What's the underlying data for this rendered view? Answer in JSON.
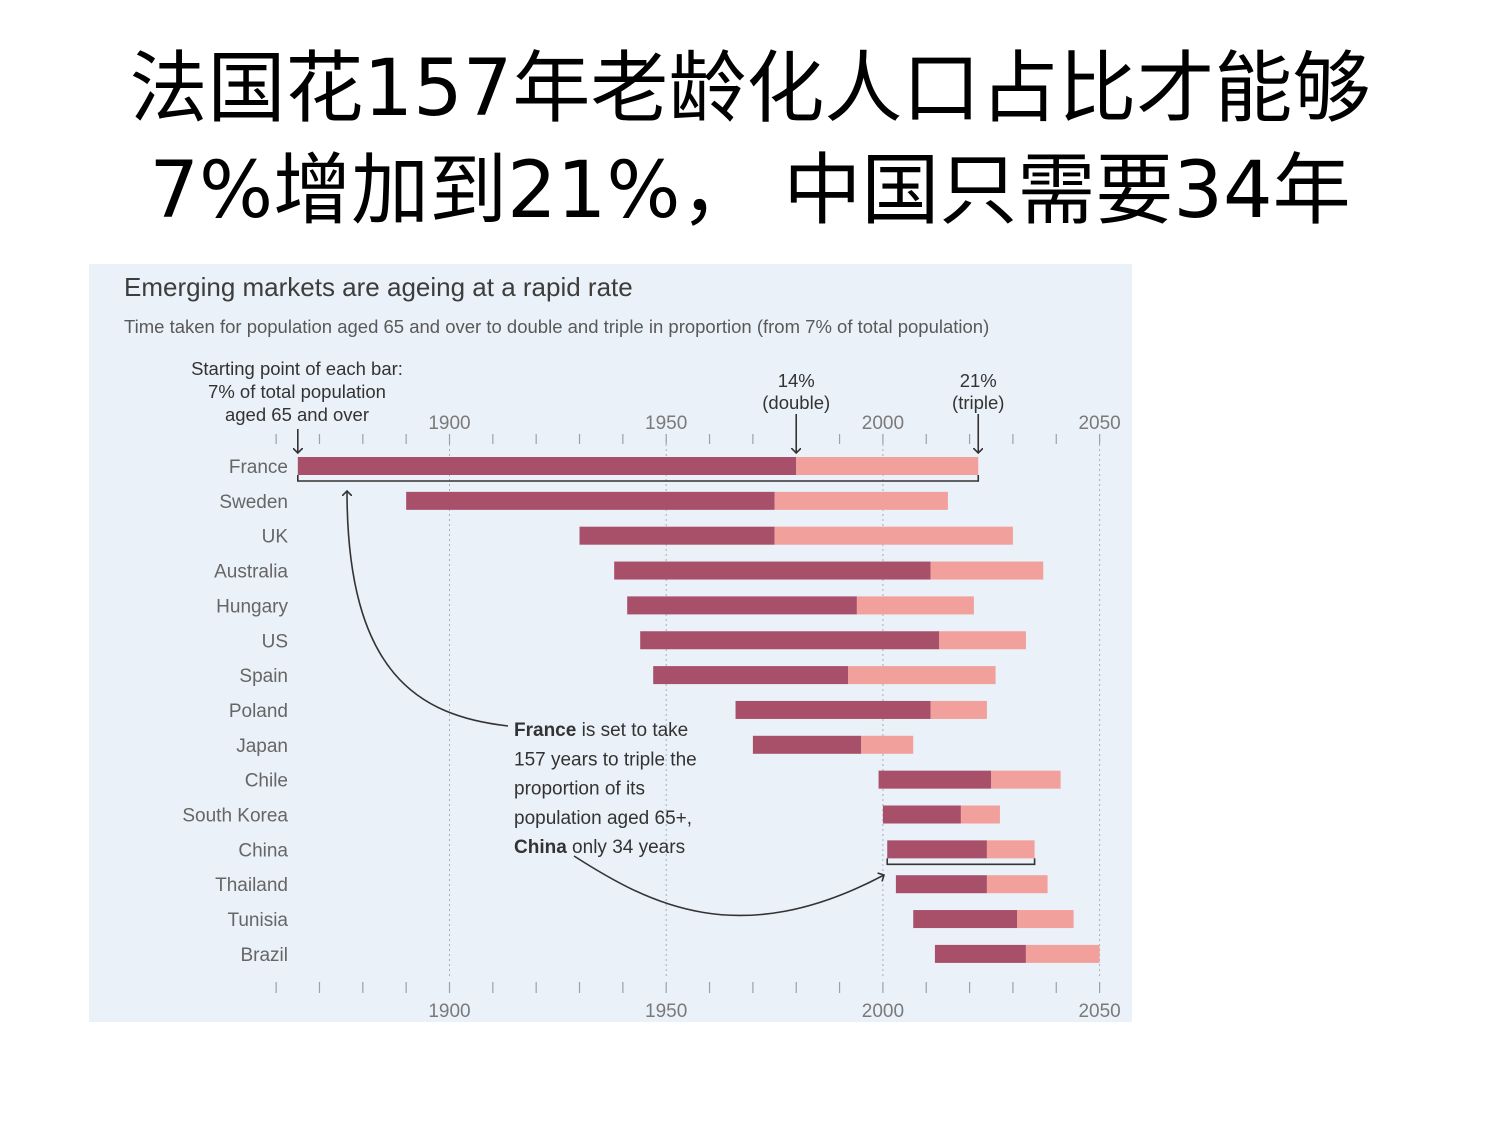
{
  "slide": {
    "title_line1": "法国花157年老龄化人口占比才能够",
    "title_line2": "7%增加到21%， 中国只需要34年"
  },
  "chart_data": {
    "type": "bar",
    "title": "Emerging markets are ageing at a rapid rate",
    "subtitle": "Time taken for population aged 65 and over to double and triple in proportion (from 7% of total population)",
    "x_ticks": [
      1900,
      1950,
      2000,
      2050
    ],
    "xlim": [
      1864,
      2050
    ],
    "grid": true,
    "colors": {
      "double": "#a8506a",
      "triple": "#f2a09c",
      "background": "#eaf1f8"
    },
    "categories": [
      "France",
      "Sweden",
      "UK",
      "Australia",
      "Hungary",
      "US",
      "Spain",
      "Poland",
      "Japan",
      "Chile",
      "South Korea",
      "China",
      "Thailand",
      "Tunisia",
      "Brazil"
    ],
    "start_7pct": [
      1865,
      1890,
      1930,
      1938,
      1941,
      1944,
      1947,
      1966,
      1970,
      1999,
      2000,
      2001,
      2003,
      2007,
      2012
    ],
    "double_14pct": [
      1980,
      1975,
      1975,
      2011,
      1994,
      2013,
      1992,
      2011,
      1995,
      2025,
      2018,
      2024,
      2024,
      2031,
      2033
    ],
    "triple_21pct": [
      2022,
      2015,
      2030,
      2037,
      2021,
      2033,
      2026,
      2024,
      2007,
      2041,
      2027,
      2035,
      2038,
      2044,
      2050
    ],
    "annotations": {
      "start_label": [
        "Starting point of each bar:",
        "7% of total population",
        "aged 65 and over"
      ],
      "double_label": [
        "14%",
        "(double)"
      ],
      "triple_label": [
        "21%",
        "(triple)"
      ],
      "note_lines": [
        {
          "bold": "France",
          "rest": " is set to take"
        },
        {
          "bold": "",
          "rest": "157 years to triple the"
        },
        {
          "bold": "",
          "rest": "proportion of its"
        },
        {
          "bold": "",
          "rest": "population aged 65+,"
        },
        {
          "bold": "China",
          "rest": " only 34 years"
        }
      ]
    }
  }
}
